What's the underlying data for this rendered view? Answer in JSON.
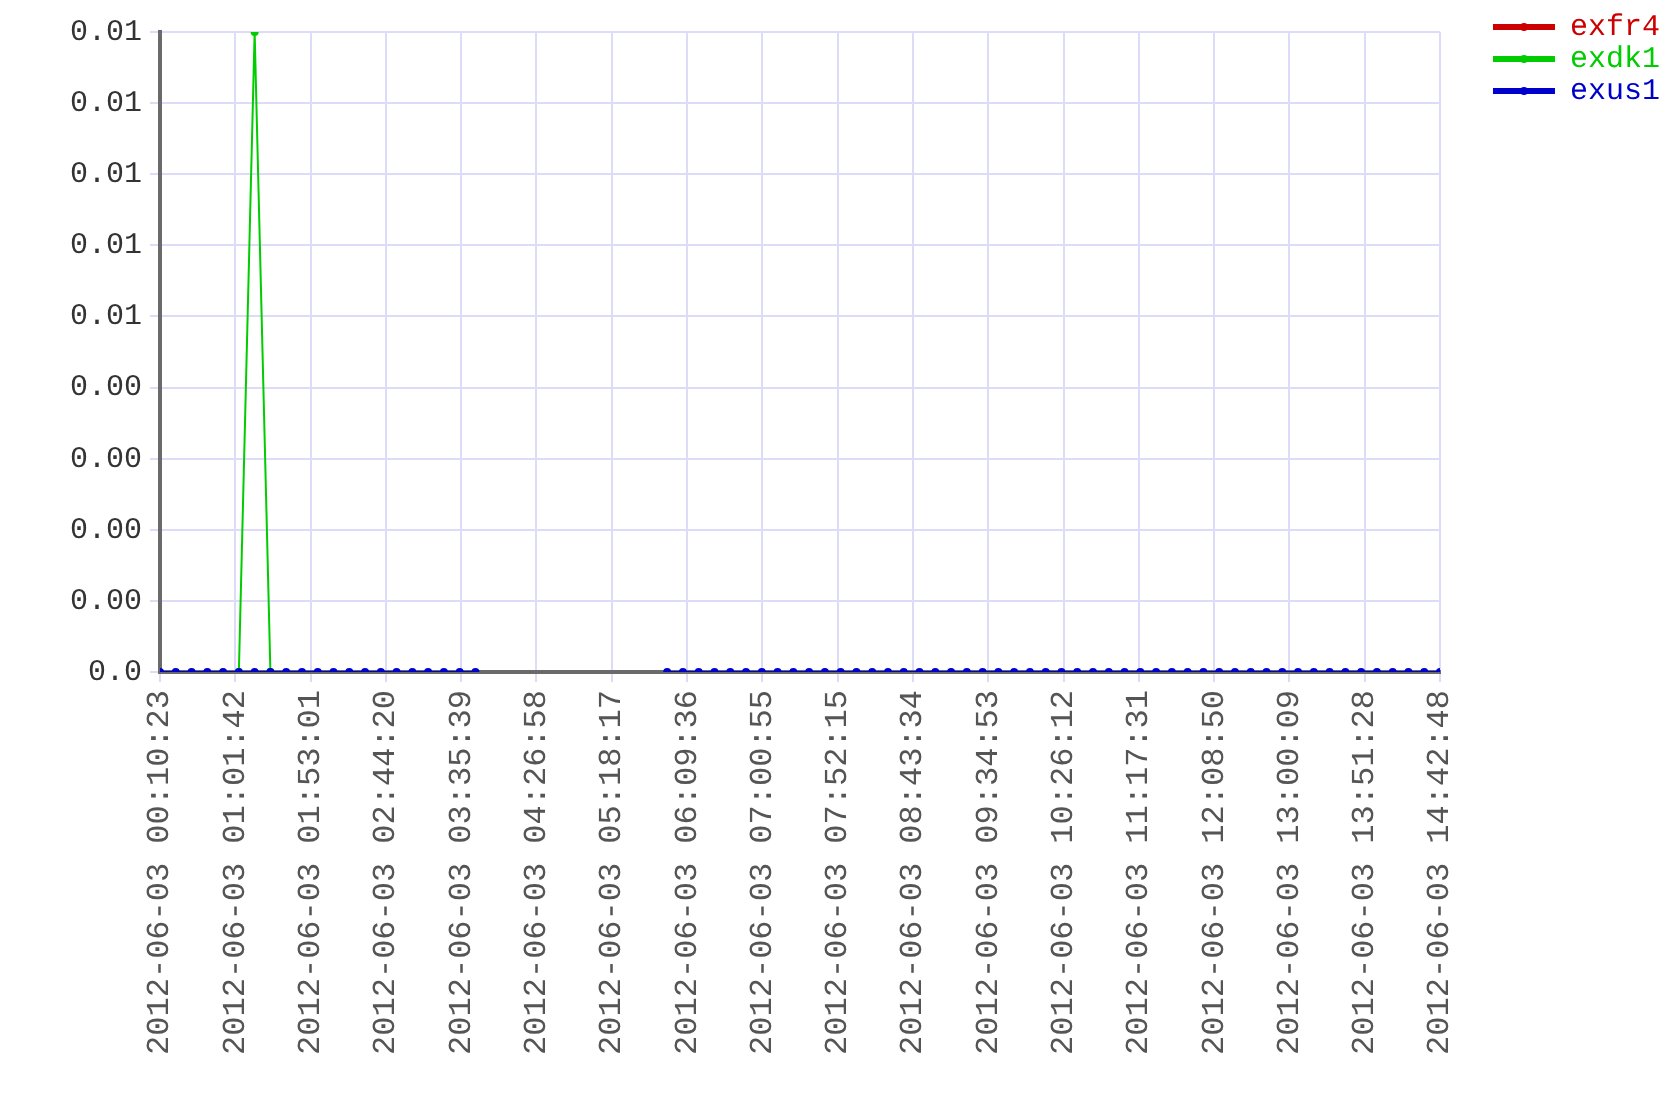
{
  "chart_data": {
    "type": "line",
    "x": [
      "2012-06-03T00:10:23",
      "2012-06-03T00:21:08",
      "2012-06-03T00:31:53",
      "2012-06-03T00:42:38",
      "2012-06-03T00:53:23",
      "2012-06-03T01:04:08",
      "2012-06-03T01:14:53",
      "2012-06-03T01:25:38",
      "2012-06-03T01:36:23",
      "2012-06-03T01:47:08",
      "2012-06-03T01:57:53",
      "2012-06-03T02:08:38",
      "2012-06-03T02:19:23",
      "2012-06-03T02:30:08",
      "2012-06-03T02:40:53",
      "2012-06-03T02:51:38",
      "2012-06-03T03:02:23",
      "2012-06-03T03:13:08",
      "2012-06-03T03:23:53",
      "2012-06-03T03:34:38",
      "2012-06-03T03:45:23",
      "2012-06-03T04:50:43",
      "2012-06-03T05:56:03",
      "2012-06-03T06:06:48",
      "2012-06-03T06:17:33",
      "2012-06-03T06:28:18",
      "2012-06-03T06:39:03",
      "2012-06-03T06:49:48",
      "2012-06-03T07:00:33",
      "2012-06-03T07:11:18",
      "2012-06-03T07:22:03",
      "2012-06-03T07:32:48",
      "2012-06-03T07:43:33",
      "2012-06-03T07:54:18",
      "2012-06-03T08:05:03",
      "2012-06-03T08:15:48",
      "2012-06-03T08:26:33",
      "2012-06-03T08:37:18",
      "2012-06-03T08:48:03",
      "2012-06-03T08:58:48",
      "2012-06-03T09:09:33",
      "2012-06-03T09:20:18",
      "2012-06-03T09:31:03",
      "2012-06-03T09:41:48",
      "2012-06-03T09:52:33",
      "2012-06-03T10:03:18",
      "2012-06-03T10:14:03",
      "2012-06-03T10:24:48",
      "2012-06-03T10:35:33",
      "2012-06-03T10:46:18",
      "2012-06-03T10:57:03",
      "2012-06-03T11:07:48",
      "2012-06-03T11:18:33",
      "2012-06-03T11:29:18",
      "2012-06-03T11:40:03",
      "2012-06-03T11:50:48",
      "2012-06-03T12:01:33",
      "2012-06-03T12:12:18",
      "2012-06-03T12:23:03",
      "2012-06-03T12:33:48",
      "2012-06-03T12:44:33",
      "2012-06-03T12:55:18",
      "2012-06-03T13:06:03",
      "2012-06-03T13:16:48",
      "2012-06-03T13:27:33",
      "2012-06-03T13:38:18",
      "2012-06-03T13:49:03",
      "2012-06-03T13:59:48",
      "2012-06-03T14:10:33",
      "2012-06-03T14:21:18",
      "2012-06-03T14:32:03",
      "2012-06-03T14:42:48"
    ],
    "series": [
      {
        "name": "exfr4",
        "color": "#cc0000",
        "values": [
          null,
          null,
          null,
          null,
          null,
          null,
          null,
          null,
          null,
          null,
          null,
          null,
          null,
          null,
          null,
          null,
          null,
          null,
          null,
          null,
          null,
          null,
          null,
          null,
          null,
          null,
          null,
          null,
          null,
          null,
          null,
          null,
          null,
          null,
          null,
          null,
          null,
          null,
          null,
          null,
          null,
          null,
          null,
          null,
          null,
          null,
          null,
          null,
          null,
          null,
          null,
          null,
          null,
          null,
          null,
          null,
          null,
          null,
          null,
          null,
          null,
          null,
          null,
          null,
          null,
          null,
          null,
          null,
          null,
          null,
          null,
          null
        ]
      },
      {
        "name": "exdk1",
        "color": "#00cc00",
        "values": [
          null,
          null,
          null,
          null,
          null,
          0,
          0.009,
          0,
          null,
          null,
          null,
          null,
          null,
          null,
          null,
          null,
          null,
          null,
          null,
          null,
          null,
          null,
          null,
          null,
          null,
          null,
          null,
          null,
          null,
          null,
          null,
          null,
          null,
          null,
          null,
          null,
          null,
          null,
          null,
          null,
          null,
          null,
          null,
          null,
          null,
          null,
          null,
          null,
          null,
          null,
          null,
          null,
          null,
          null,
          null,
          null,
          null,
          null,
          null,
          null,
          null,
          null,
          null,
          null,
          null,
          null,
          null,
          null,
          null,
          null,
          null,
          null
        ]
      },
      {
        "name": "exus1",
        "color": "#0000cc",
        "values": [
          0,
          0,
          0,
          0,
          0,
          0,
          0,
          0,
          0,
          0,
          0,
          0,
          0,
          0,
          0,
          0,
          0,
          0,
          0,
          0,
          0,
          null,
          0,
          0,
          0,
          0,
          0,
          0,
          0,
          0,
          0,
          0,
          0,
          0,
          0,
          0,
          0,
          0,
          0,
          0,
          0,
          0,
          0,
          0,
          0,
          0,
          0,
          0,
          0,
          0,
          0,
          0,
          0,
          0,
          0,
          0,
          0,
          0,
          0,
          0,
          0,
          0,
          0,
          0,
          0,
          0,
          0,
          0,
          0,
          0,
          0,
          0
        ]
      }
    ],
    "xlim": [
      "2012-06-03T00:10:23",
      "2012-06-03T14:42:48"
    ],
    "xticks": [
      {
        "value": "2012-06-03T00:10:23",
        "label": "2012-06-03 00:10:23"
      },
      {
        "value": "2012-06-03T01:01:42",
        "label": "2012-06-03 01:01:42"
      },
      {
        "value": "2012-06-03T01:53:01",
        "label": "2012-06-03 01:53:01"
      },
      {
        "value": "2012-06-03T02:44:20",
        "label": "2012-06-03 02:44:20"
      },
      {
        "value": "2012-06-03T03:35:39",
        "label": "2012-06-03 03:35:39"
      },
      {
        "value": "2012-06-03T04:26:58",
        "label": "2012-06-03 04:26:58"
      },
      {
        "value": "2012-06-03T05:18:17",
        "label": "2012-06-03 05:18:17"
      },
      {
        "value": "2012-06-03T06:09:36",
        "label": "2012-06-03 06:09:36"
      },
      {
        "value": "2012-06-03T07:00:55",
        "label": "2012-06-03 07:00:55"
      },
      {
        "value": "2012-06-03T07:52:15",
        "label": "2012-06-03 07:52:15"
      },
      {
        "value": "2012-06-03T08:43:34",
        "label": "2012-06-03 08:43:34"
      },
      {
        "value": "2012-06-03T09:34:53",
        "label": "2012-06-03 09:34:53"
      },
      {
        "value": "2012-06-03T10:26:12",
        "label": "2012-06-03 10:26:12"
      },
      {
        "value": "2012-06-03T11:17:31",
        "label": "2012-06-03 11:17:31"
      },
      {
        "value": "2012-06-03T12:08:50",
        "label": "2012-06-03 12:08:50"
      },
      {
        "value": "2012-06-03T13:00:09",
        "label": "2012-06-03 13:00:09"
      },
      {
        "value": "2012-06-03T13:51:28",
        "label": "2012-06-03 13:51:28"
      },
      {
        "value": "2012-06-03T14:42:48",
        "label": "2012-06-03 14:42:48"
      }
    ],
    "ylim": [
      0,
      0.009
    ],
    "yticks": [
      {
        "value": 0,
        "label": "0.0"
      },
      {
        "value": 0.001,
        "label": "0.00"
      },
      {
        "value": 0.002,
        "label": "0.00"
      },
      {
        "value": 0.003,
        "label": "0.00"
      },
      {
        "value": 0.004,
        "label": "0.00"
      },
      {
        "value": 0.005,
        "label": "0.01"
      },
      {
        "value": 0.006,
        "label": "0.01"
      },
      {
        "value": 0.007,
        "label": "0.01"
      },
      {
        "value": 0.008,
        "label": "0.01"
      },
      {
        "value": 0.009,
        "label": "0.01"
      }
    ],
    "grid": true,
    "legend": "top right",
    "marker": "circle",
    "line_style": "solid"
  }
}
